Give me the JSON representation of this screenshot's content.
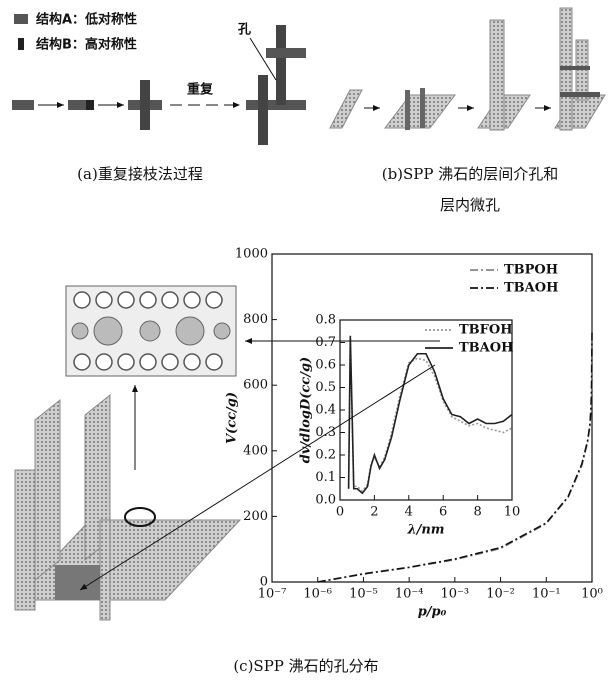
{
  "panels": {
    "a": {
      "legend": [
        "结构A：低对称性",
        "结构B：高对称性"
      ],
      "pore_label": "孔",
      "repeat_label": "重复",
      "caption": "(a)重复接枝法过程"
    },
    "b": {
      "caption_line1": "(b)SPP 沸石的层间介孔和",
      "caption_line2": "层内微孔"
    },
    "c": {
      "caption": "(c)SPP 沸石的孔分布"
    }
  },
  "chart_data": [
    {
      "type": "line",
      "xlabel": "p/p₀",
      "ylabel": "V(cc/g)",
      "xscale": "log",
      "xlim": [
        1e-07,
        1
      ],
      "ylim": [
        0,
        1000
      ],
      "xticks": [
        {
          "value": 1e-07,
          "label": "10⁻⁷"
        },
        {
          "value": 1e-06,
          "label": "10⁻⁶"
        },
        {
          "value": 1e-05,
          "label": "10⁻⁵"
        },
        {
          "value": 0.0001,
          "label": "10⁻⁴"
        },
        {
          "value": 0.001,
          "label": "10⁻³"
        },
        {
          "value": 0.01,
          "label": "10⁻²"
        },
        {
          "value": 0.1,
          "label": "10⁻¹"
        },
        {
          "value": 1,
          "label": "10⁰"
        }
      ],
      "yticks": [
        0,
        200,
        400,
        600,
        800,
        1000
      ],
      "x": [
        1e-06,
        1e-05,
        0.0001,
        0.001,
        0.01,
        0.1,
        0.3,
        0.6,
        0.8,
        0.9,
        0.95,
        0.98,
        1
      ],
      "series": [
        {
          "name": "TBPOH",
          "color": "#888888",
          "dash": "dashdot",
          "values": [
            0,
            24,
            44,
            68,
            102,
            178,
            258,
            355,
            425,
            475,
            525,
            590,
            740
          ]
        },
        {
          "name": "TBAOH",
          "color": "#111111",
          "dash": "dashdot",
          "values": [
            0,
            25,
            45,
            70,
            105,
            180,
            260,
            360,
            430,
            480,
            530,
            600,
            760
          ]
        }
      ],
      "legend": "upper right"
    },
    {
      "type": "line",
      "xlabel": "λ/nm",
      "ylabel": "dv/dlogD(cc/g)",
      "xlim": [
        0,
        10
      ],
      "ylim": [
        0,
        0.8
      ],
      "xticks": [
        0,
        2,
        4,
        6,
        8,
        10
      ],
      "yticks": [
        {
          "value": 0,
          "label": "0.0"
        },
        0.1,
        0.2,
        0.3,
        0.4,
        0.5,
        0.6,
        0.7,
        0.8
      ],
      "x": [
        0.5,
        0.6,
        0.7,
        0.8,
        1,
        1.3,
        1.6,
        1.8,
        2,
        2.3,
        2.6,
        3,
        3.5,
        4,
        4.5,
        5,
        5.5,
        6,
        6.5,
        7,
        7.5,
        8,
        8.5,
        9,
        9.5,
        10
      ],
      "series": [
        {
          "name": "TBFOH",
          "color": "#999999",
          "dash": "dotted",
          "values": [
            0.05,
            0.72,
            0.38,
            0.06,
            0.06,
            0.04,
            0.07,
            0.16,
            0.19,
            0.15,
            0.19,
            0.3,
            0.47,
            0.61,
            0.63,
            0.62,
            0.55,
            0.44,
            0.37,
            0.35,
            0.33,
            0.34,
            0.32,
            0.31,
            0.3,
            0.32
          ]
        },
        {
          "name": "TBAOH",
          "color": "#222222",
          "dash": "solid",
          "values": [
            0.05,
            0.73,
            0.4,
            0.05,
            0.05,
            0.03,
            0.06,
            0.15,
            0.2,
            0.14,
            0.18,
            0.28,
            0.45,
            0.6,
            0.65,
            0.65,
            0.57,
            0.45,
            0.38,
            0.37,
            0.34,
            0.36,
            0.34,
            0.34,
            0.35,
            0.38
          ]
        }
      ],
      "legend": "upper right"
    }
  ]
}
